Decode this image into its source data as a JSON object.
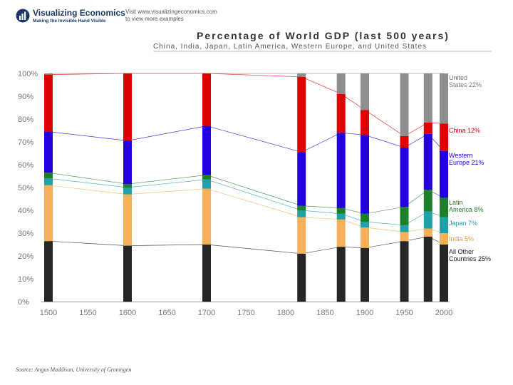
{
  "header": {
    "logo_name": "Visualizing Economics",
    "logo_tagline": "Making the Invisible Hand Visible",
    "visit_line1": "Visit www.visualizingeconomics.com",
    "visit_line2": "to view more examples"
  },
  "source": "Source: Angus Maddison, University of Groningen",
  "chart_data": {
    "type": "bar",
    "stacked": true,
    "title": "Percentage of World GDP (last 500 years)",
    "subtitle": "China, India, Japan, Latin America, Western Europe, and United States",
    "x": [
      1500,
      1600,
      1700,
      1820,
      1870,
      1900,
      1950,
      1980,
      2000
    ],
    "xlim": [
      1500,
      2000
    ],
    "ylim": [
      0,
      100
    ],
    "x_ticks": [
      "1500",
      "1550",
      "1600",
      "1650",
      "1700",
      "1750",
      "1800",
      "1850",
      "1900",
      "1950",
      "2000"
    ],
    "y_ticks": [
      "0%",
      "10%",
      "20%",
      "30%",
      "40%",
      "50%",
      "60%",
      "70%",
      "80%",
      "90%",
      "100%"
    ],
    "series": [
      {
        "name": "All Other Countries",
        "color": "#262626",
        "values": [
          26.5,
          24.5,
          25,
          21,
          24,
          23.5,
          26.5,
          28.5,
          25
        ]
      },
      {
        "name": "India",
        "color": "#f6b05a",
        "values": [
          24.5,
          22.5,
          24.5,
          16,
          12,
          9,
          4,
          3.5,
          5
        ]
      },
      {
        "name": "Japan",
        "color": "#20a0a8",
        "values": [
          3,
          3,
          4,
          3,
          2.5,
          2.5,
          3,
          7.5,
          7
        ]
      },
      {
        "name": "Latin America",
        "color": "#1e7f2a",
        "values": [
          2.5,
          1.5,
          2,
          2,
          2.5,
          3.5,
          8,
          9.5,
          8.5
        ]
      },
      {
        "name": "Western Europe",
        "color": "#2200dd",
        "values": [
          18,
          19,
          21.5,
          23.5,
          33,
          34.5,
          26,
          24.5,
          20.5
        ]
      },
      {
        "name": "China",
        "color": "#dd0000",
        "values": [
          25,
          29.5,
          23,
          33,
          17,
          11,
          5,
          5,
          12
        ]
      },
      {
        "name": "United States",
        "color": "#8e8e8e",
        "values": [
          0.5,
          0,
          0,
          1.5,
          9,
          16,
          27.5,
          21.5,
          22
        ]
      }
    ],
    "legend": [
      {
        "label": "United States 22%",
        "line1": "United",
        "line2": "States 22%",
        "color": "#777777"
      },
      {
        "label": "China 12%",
        "line1": "China 12%",
        "line2": "",
        "color": "#dd0000"
      },
      {
        "label": "Western Europe 21%",
        "line1": "Western",
        "line2": "Europe 21%",
        "color": "#2200dd"
      },
      {
        "label": "Latin America 8%",
        "line1": "Latin",
        "line2": "America 8%",
        "color": "#1e7f2a"
      },
      {
        "label": "Japan 7%",
        "line1": "Japan 7%",
        "line2": "",
        "color": "#20a0a8"
      },
      {
        "label": "India 5%",
        "line1": "India 5%",
        "line2": "",
        "color": "#e89b3a"
      },
      {
        "label": "All Other Countries 25%",
        "line1": "All Other",
        "line2": "Countries 25%",
        "color": "#222222"
      }
    ],
    "legend_placement": "right",
    "grid": false
  }
}
